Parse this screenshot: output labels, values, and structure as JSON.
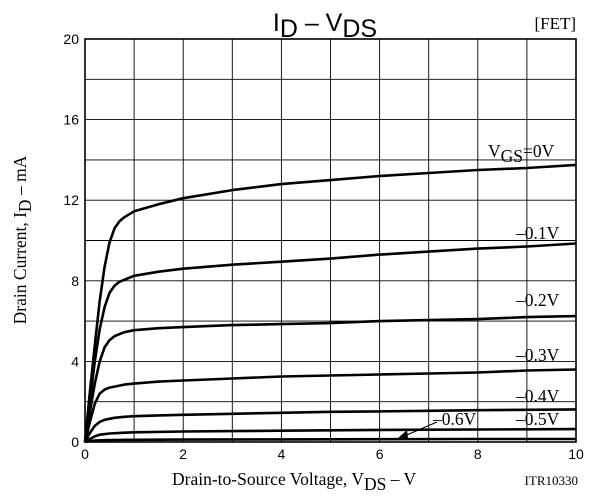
{
  "chart_data": {
    "type": "line",
    "title": "I",
    "title_sub1": "D",
    "title_mid": " – V",
    "title_sub2": "DS",
    "tag": "[FET]",
    "xlabel_pre": "Drain-to-Source Voltage, V",
    "xlabel_sub": "DS",
    "xlabel_post": " – V",
    "ylabel_pre": "Drain Current, I",
    "ylabel_sub": "D",
    "ylabel_post": " – mA",
    "code": "ITR10330",
    "xlim": [
      0,
      10
    ],
    "ylim": [
      0,
      20
    ],
    "xticks": [
      0,
      2,
      4,
      6,
      8,
      10
    ],
    "yticks": [
      0,
      4,
      8,
      12,
      16,
      20
    ],
    "x_minor_step": 1,
    "y_minor_step": 2,
    "grid": true,
    "series": [
      {
        "name": "VGS=0V",
        "label_main": "V",
        "label_sub": "GS",
        "label_rest": "=0V",
        "x": [
          0,
          0.1,
          0.2,
          0.3,
          0.4,
          0.5,
          0.6,
          0.7,
          0.8,
          0.9,
          1.0,
          1.5,
          2,
          3,
          4,
          5,
          6,
          7,
          8,
          9,
          10
        ],
        "y": [
          0,
          2.5,
          4.8,
          7.0,
          8.7,
          9.9,
          10.6,
          10.95,
          11.15,
          11.3,
          11.45,
          11.8,
          12.1,
          12.5,
          12.8,
          13.0,
          13.2,
          13.35,
          13.5,
          13.6,
          13.75
        ]
      },
      {
        "name": "–0.1V",
        "label_main": "–0.1V",
        "x": [
          0,
          0.1,
          0.2,
          0.3,
          0.4,
          0.5,
          0.6,
          0.7,
          0.8,
          0.9,
          1.0,
          1.5,
          2,
          3,
          4,
          5,
          6,
          7,
          8,
          9,
          10
        ],
        "y": [
          0,
          2.0,
          4.0,
          5.6,
          6.7,
          7.4,
          7.75,
          7.95,
          8.05,
          8.15,
          8.25,
          8.45,
          8.6,
          8.8,
          8.95,
          9.1,
          9.3,
          9.45,
          9.6,
          9.7,
          9.85
        ]
      },
      {
        "name": "–0.2V",
        "label_main": "–0.2V",
        "x": [
          0,
          0.1,
          0.2,
          0.3,
          0.4,
          0.5,
          0.6,
          0.7,
          0.8,
          0.9,
          1.0,
          1.5,
          2,
          3,
          4,
          5,
          6,
          7,
          8,
          9,
          10
        ],
        "y": [
          0,
          1.5,
          2.9,
          4.0,
          4.7,
          5.05,
          5.25,
          5.35,
          5.45,
          5.5,
          5.55,
          5.65,
          5.7,
          5.8,
          5.85,
          5.9,
          6.0,
          6.05,
          6.1,
          6.2,
          6.25
        ]
      },
      {
        "name": "–0.3V",
        "label_main": "–0.3V",
        "x": [
          0,
          0.1,
          0.2,
          0.3,
          0.4,
          0.5,
          0.6,
          0.7,
          0.8,
          1.0,
          1.5,
          2,
          3,
          4,
          5,
          6,
          7,
          8,
          9,
          10
        ],
        "y": [
          0,
          1.0,
          1.9,
          2.4,
          2.6,
          2.7,
          2.75,
          2.8,
          2.85,
          2.9,
          3.0,
          3.05,
          3.15,
          3.25,
          3.3,
          3.35,
          3.4,
          3.45,
          3.55,
          3.6
        ]
      },
      {
        "name": "–0.4V",
        "label_main": "–0.4V",
        "x": [
          0,
          0.1,
          0.2,
          0.3,
          0.4,
          0.5,
          0.6,
          0.8,
          1.0,
          1.5,
          2,
          3,
          4,
          5,
          6,
          7,
          8,
          9,
          10
        ],
        "y": [
          0,
          0.45,
          0.8,
          1.0,
          1.1,
          1.15,
          1.2,
          1.25,
          1.28,
          1.32,
          1.35,
          1.4,
          1.45,
          1.5,
          1.52,
          1.55,
          1.58,
          1.6,
          1.62
        ]
      },
      {
        "name": "–0.5V",
        "label_main": "–0.5V",
        "x": [
          0,
          0.1,
          0.2,
          0.3,
          0.5,
          0.8,
          1.0,
          2,
          3,
          4,
          5,
          6,
          7,
          8,
          9,
          10
        ],
        "y": [
          0,
          0.15,
          0.28,
          0.36,
          0.42,
          0.46,
          0.48,
          0.52,
          0.54,
          0.56,
          0.58,
          0.6,
          0.61,
          0.62,
          0.63,
          0.64
        ]
      },
      {
        "name": "–0.6V",
        "label_main": "–0.6V",
        "x": [
          0,
          0.1,
          0.2,
          0.4,
          0.6,
          1.0,
          2,
          4,
          6,
          8,
          10
        ],
        "y": [
          0,
          0.04,
          0.07,
          0.09,
          0.1,
          0.11,
          0.12,
          0.13,
          0.14,
          0.15,
          0.15
        ]
      }
    ]
  }
}
